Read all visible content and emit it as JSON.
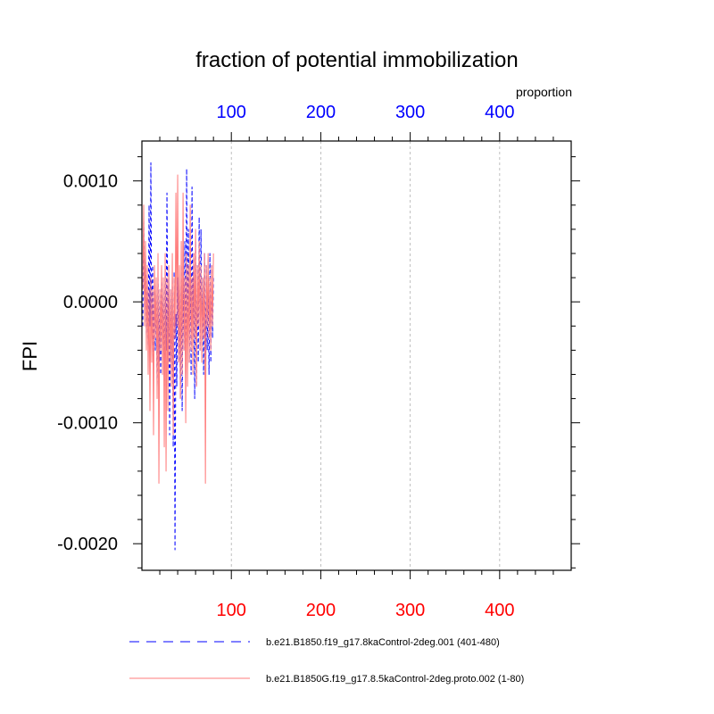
{
  "chart_data": {
    "type": "line",
    "title": "fraction of potential immobilization",
    "ylabel": "FPI",
    "top_axis_label": "proportion",
    "xlim": [
      0,
      480
    ],
    "ylim": [
      -0.00222,
      0.00133
    ],
    "x_ticks": [
      {
        "value": 100,
        "label": "100"
      },
      {
        "value": 200,
        "label": "200"
      },
      {
        "value": 300,
        "label": "300"
      },
      {
        "value": 400,
        "label": "400"
      }
    ],
    "y_ticks": [
      {
        "value": 0.001,
        "label": "0.0010"
      },
      {
        "value": 0.0,
        "label": "0.0000"
      },
      {
        "value": -0.001,
        "label": "-0.0010"
      },
      {
        "value": -0.002,
        "label": "-0.0020"
      }
    ],
    "grid": "vertical dashed",
    "legend": "bottom",
    "series": [
      {
        "name": "b.e21.B1850.f19_g17.8kaControl-2deg.001 (401-480)",
        "color": "#0000ff",
        "style": "dashed",
        "x": [
          1,
          2,
          3,
          4,
          5,
          6,
          7,
          8,
          9,
          10,
          11,
          12,
          13,
          14,
          15,
          16,
          17,
          18,
          19,
          20,
          21,
          22,
          23,
          24,
          25,
          26,
          27,
          28,
          29,
          30,
          31,
          32,
          33,
          34,
          35,
          36,
          37,
          38,
          39,
          40,
          41,
          42,
          43,
          44,
          45,
          46,
          47,
          48,
          49,
          50,
          51,
          52,
          53,
          54,
          55,
          56,
          57,
          58,
          59,
          60,
          61,
          62,
          63,
          64,
          65,
          66,
          67,
          68,
          69,
          70,
          71,
          72,
          73,
          74,
          75,
          76,
          77,
          78,
          79,
          80
        ],
        "y": [
          -0.0002,
          0.0007,
          -0.0001,
          0.0004,
          -0.0003,
          0.0002,
          -0.0004,
          0.0008,
          -0.0002,
          0.00115,
          -0.0003,
          0.0003,
          -0.0005,
          0.0002,
          -0.0004,
          0.0001,
          -0.0007,
          0.0002,
          -0.0005,
          0.0001,
          -0.0006,
          0.0002,
          -0.0003,
          0.0001,
          -0.0007,
          0.0003,
          -0.0004,
          0.0009,
          -0.0003,
          0.0002,
          -0.0011,
          0.0001,
          -0.0006,
          0.0002,
          -0.0012,
          0.00025,
          -0.00205,
          -0.0001,
          -0.0007,
          0.0002,
          -0.0005,
          0.0001,
          -0.0008,
          0.0003,
          -0.0009,
          0.0002,
          -0.0004,
          0.0005,
          -0.0006,
          0.0011,
          -0.0003,
          0.0006,
          -0.0005,
          0.0003,
          -0.0006,
          0.00095,
          -0.0002,
          0.0004,
          -0.0008,
          0.0005,
          -0.0007,
          0.0003,
          -0.0005,
          0.0007,
          -0.0004,
          0.0006,
          -0.0003,
          0.0002,
          -0.0006,
          0.0004,
          -0.0005,
          0.0003,
          -0.0004,
          0.0002,
          -0.0006,
          0.0004,
          -0.0005,
          0.0003,
          -0.0003,
          0.0002
        ]
      },
      {
        "name": "b.e21.B1850G.f19_g17.8.5kaControl-2deg.proto.002 (1-80)",
        "color": "#ff7b7b",
        "style": "solid",
        "x": [
          1,
          2,
          3,
          4,
          5,
          6,
          7,
          8,
          9,
          10,
          11,
          12,
          13,
          14,
          15,
          16,
          17,
          18,
          19,
          20,
          21,
          22,
          23,
          24,
          25,
          26,
          27,
          28,
          29,
          30,
          31,
          32,
          33,
          34,
          35,
          36,
          37,
          38,
          39,
          40,
          41,
          42,
          43,
          44,
          45,
          46,
          47,
          48,
          49,
          50,
          51,
          52,
          53,
          54,
          55,
          56,
          57,
          58,
          59,
          60,
          61,
          62,
          63,
          64,
          65,
          66,
          67,
          68,
          69,
          70,
          71,
          72,
          73,
          74,
          75,
          76,
          77,
          78,
          79,
          80
        ],
        "y": [
          0.0001,
          0.0008,
          -0.0002,
          0.0005,
          -0.0004,
          0.0003,
          -0.0006,
          0.0001,
          -0.0009,
          0.0002,
          -0.0005,
          0.0001,
          -0.0011,
          0.0003,
          -0.0003,
          0.0002,
          -0.0008,
          0.0004,
          -0.0015,
          0.0001,
          -0.0004,
          0.0003,
          -0.0006,
          0.0002,
          -0.0012,
          0.0004,
          -0.0014,
          0.0002,
          -0.0009,
          0.0003,
          -0.0005,
          0.0001,
          -0.0007,
          0.0004,
          -0.0011,
          0.0002,
          -0.0003,
          0.0009,
          -0.0002,
          0.00105,
          -0.0005,
          0.0003,
          -0.0008,
          0.0005,
          -0.0006,
          0.0009,
          -0.0004,
          0.0002,
          -0.001,
          0.0004,
          -0.0007,
          0.0003,
          -0.0005,
          0.0008,
          -0.0004,
          0.0002,
          -0.0006,
          0.0004,
          -0.0003,
          0.0006,
          -0.0007,
          0.0003,
          -0.0002,
          0.0005,
          -0.0004,
          0.0003,
          -0.0005,
          0.0002,
          -0.0003,
          0.0004,
          -0.0015,
          0.0003,
          -0.0002,
          0.0004,
          -0.0003,
          0.0002,
          -0.0004,
          0.0003,
          -0.0002,
          0.0004
        ]
      }
    ]
  }
}
